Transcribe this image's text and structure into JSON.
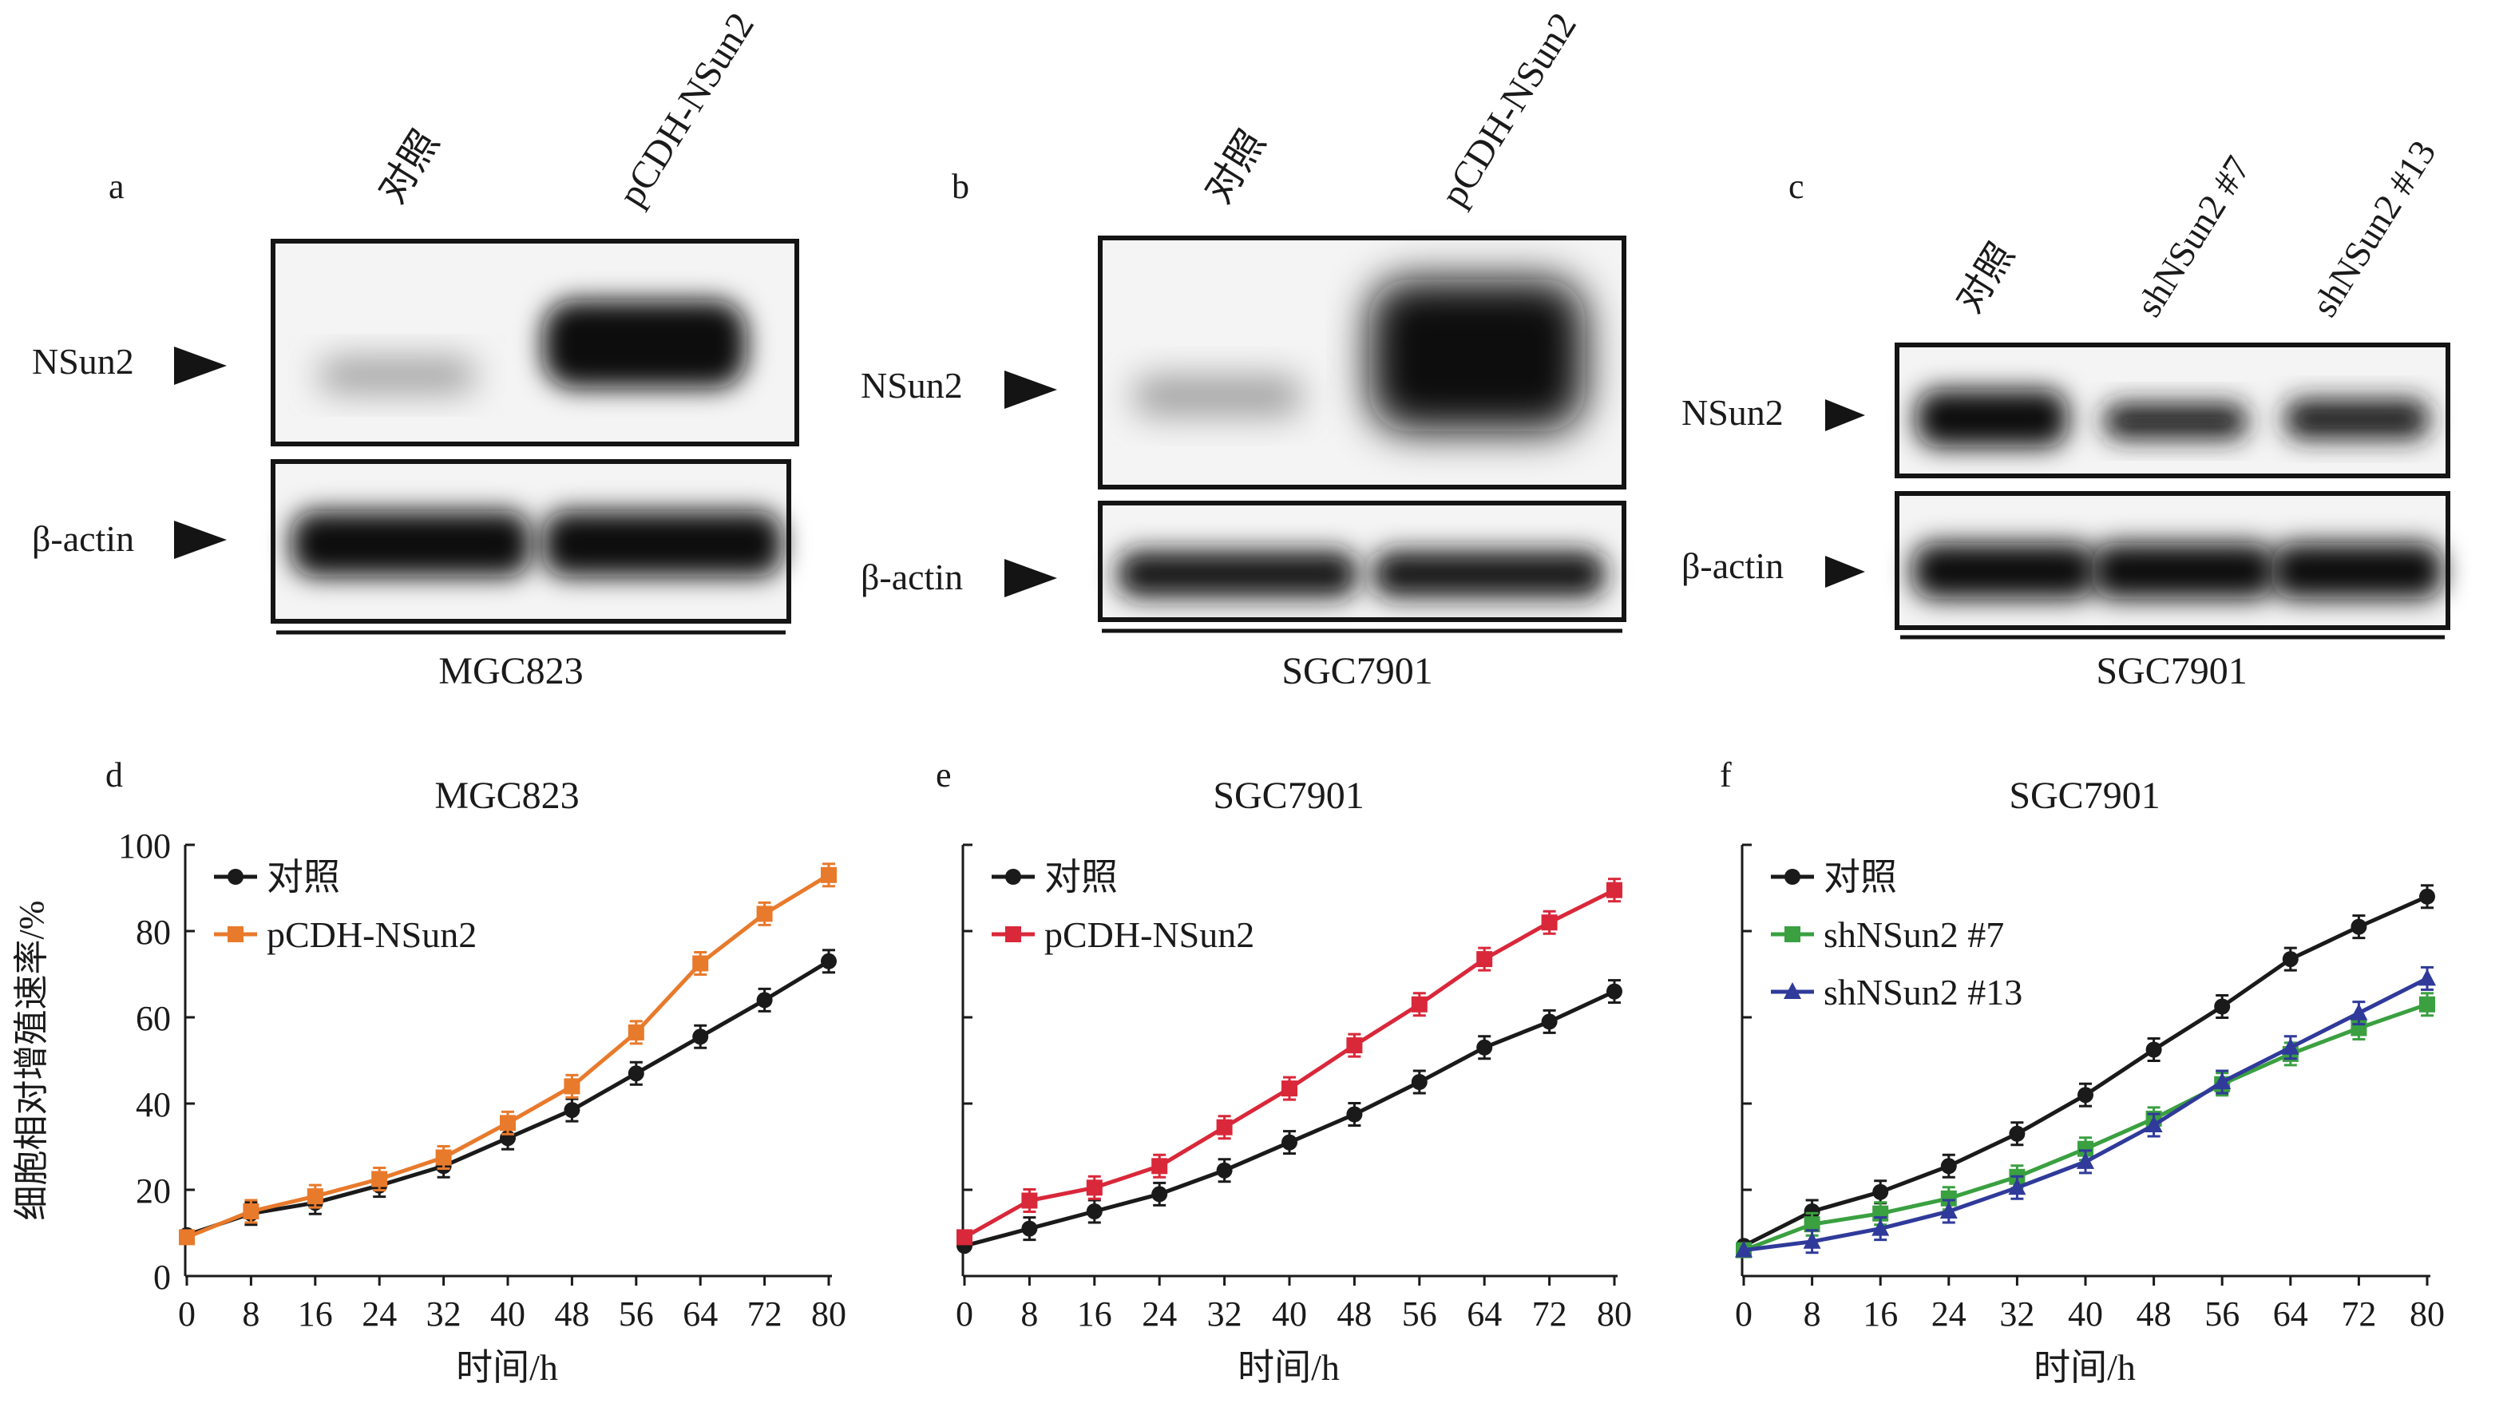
{
  "panel_letters": [
    "a",
    "b",
    "c",
    "d",
    "e",
    "f"
  ],
  "blots": [
    {
      "cell_line": "MGC823",
      "lanes": [
        "对照",
        "pCDH-NSun2"
      ],
      "row_labels": [
        "NSun2",
        "β-actin"
      ]
    },
    {
      "cell_line": "SGC7901",
      "lanes": [
        "对照",
        "pCDH-NSun2"
      ],
      "row_labels": [
        "NSun2",
        "β-actin"
      ]
    },
    {
      "cell_line": "SGC7901",
      "lanes": [
        "对照",
        "shNSun2 #7",
        "shNSun2 #13"
      ],
      "row_labels": [
        "NSun2",
        "β-actin"
      ]
    }
  ],
  "chart_data": [
    {
      "type": "line",
      "title": "MGC823",
      "xlabel": "时间/h",
      "ylabel": "细胞相对增殖速率/%",
      "x": [
        0,
        8,
        16,
        24,
        32,
        40,
        48,
        56,
        64,
        72,
        80
      ],
      "ylim": [
        0,
        100
      ],
      "yticks": [
        0,
        20,
        40,
        60,
        80,
        100
      ],
      "legend_position": "top-left",
      "series": [
        {
          "name": "对照",
          "color": "#1a1a1a",
          "marker": "circle",
          "values": [
            9.5,
            14.5,
            17,
            21,
            25.5,
            32,
            38.5,
            47,
            55.5,
            64,
            73
          ]
        },
        {
          "name": "pCDH-NSun2",
          "color": "#e87a2c",
          "marker": "square",
          "values": [
            9,
            15,
            18.5,
            22.5,
            27.5,
            35.5,
            44,
            56.5,
            72.5,
            84,
            93
          ]
        }
      ]
    },
    {
      "type": "line",
      "title": "SGC7901",
      "xlabel": "时间/h",
      "ylabel": "",
      "x": [
        0,
        8,
        16,
        24,
        32,
        40,
        48,
        56,
        64,
        72,
        80
      ],
      "ylim": [
        0,
        100
      ],
      "yticks": [
        0,
        20,
        40,
        60,
        80,
        100
      ],
      "show_ytick_labels": false,
      "legend_position": "top-left",
      "series": [
        {
          "name": "对照",
          "color": "#1a1a1a",
          "marker": "circle",
          "values": [
            7,
            11,
            15,
            19,
            24.5,
            31,
            37.5,
            45,
            53,
            59,
            66
          ]
        },
        {
          "name": "pCDH-NSun2",
          "color": "#d9283a",
          "marker": "square",
          "values": [
            9,
            17.5,
            20.5,
            25.5,
            34.5,
            43.5,
            53.5,
            63,
            73.5,
            82,
            89.5
          ]
        }
      ]
    },
    {
      "type": "line",
      "title": "SGC7901",
      "xlabel": "时间/h",
      "ylabel": "",
      "x": [
        0,
        8,
        16,
        24,
        32,
        40,
        48,
        56,
        64,
        72,
        80
      ],
      "ylim": [
        0,
        100
      ],
      "yticks": [
        0,
        20,
        40,
        60,
        80,
        100
      ],
      "show_ytick_labels": false,
      "legend_position": "top-left",
      "series": [
        {
          "name": "对照",
          "color": "#1a1a1a",
          "marker": "circle",
          "values": [
            7,
            15,
            19.5,
            25.5,
            33,
            42,
            52.5,
            62.5,
            73.5,
            81,
            88
          ]
        },
        {
          "name": "shNSun2 #7",
          "color": "#3aa040",
          "marker": "square",
          "values": [
            6,
            12,
            14.5,
            18,
            23,
            29.5,
            36.5,
            44.5,
            51.5,
            57.5,
            63
          ]
        },
        {
          "name": "shNSun2 #13",
          "color": "#2f3a9a",
          "marker": "triangle",
          "values": [
            6,
            8,
            11,
            15,
            20.5,
            26.5,
            35,
            45,
            53,
            61,
            69
          ]
        }
      ]
    }
  ]
}
